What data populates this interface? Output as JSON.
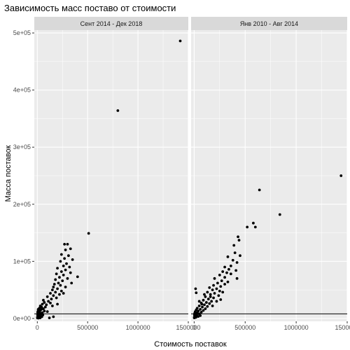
{
  "chart_data": {
    "type": "scatter",
    "title": "Зависимость масс поставо от стоимости",
    "xlabel": "Стоимость поставок",
    "ylabel": "Масса поставок",
    "xlim": [
      -30000,
      1500000
    ],
    "ylim": [
      -5000,
      505000
    ],
    "x_ticks": [
      0,
      500000,
      1000000,
      1500000
    ],
    "x_tick_labels": [
      "0",
      "500000",
      "1000000",
      "1500000"
    ],
    "y_ticks": [
      0,
      100000,
      200000,
      300000,
      400000,
      500000
    ],
    "y_tick_labels": [
      "0e+00",
      "1e+05",
      "2e+05",
      "3e+05",
      "4e+05",
      "5e+05"
    ],
    "hline": 8000,
    "grid": true,
    "background": "#EBEBEB",
    "strip_background": "#D9D9D9",
    "point_color": "#000000",
    "panels": [
      {
        "label": "Сент 2014 - Дек 2018",
        "points": [
          [
            1420000,
            486000
          ],
          [
            800000,
            364000
          ],
          [
            510000,
            149000
          ],
          [
            270000,
            130000
          ],
          [
            300000,
            130000
          ],
          [
            330000,
            122000
          ],
          [
            280000,
            120000
          ],
          [
            240000,
            112000
          ],
          [
            310000,
            110000
          ],
          [
            270000,
            105000
          ],
          [
            350000,
            103000
          ],
          [
            230000,
            100000
          ],
          [
            290000,
            96000
          ],
          [
            260000,
            92000
          ],
          [
            320000,
            90000
          ],
          [
            200000,
            88000
          ],
          [
            280000,
            85000
          ],
          [
            240000,
            82000
          ],
          [
            330000,
            80000
          ],
          [
            190000,
            78000
          ],
          [
            260000,
            76000
          ],
          [
            400000,
            73000
          ],
          [
            220000,
            72000
          ],
          [
            300000,
            70000
          ],
          [
            180000,
            68000
          ],
          [
            250000,
            66000
          ],
          [
            210000,
            62000
          ],
          [
            340000,
            62000
          ],
          [
            170000,
            60000
          ],
          [
            230000,
            58000
          ],
          [
            160000,
            55000
          ],
          [
            280000,
            55000
          ],
          [
            200000,
            52000
          ],
          [
            150000,
            50000
          ],
          [
            240000,
            48000
          ],
          [
            180000,
            46000
          ],
          [
            130000,
            44000
          ],
          [
            260000,
            44000
          ],
          [
            220000,
            42000
          ],
          [
            160000,
            40000
          ],
          [
            100000,
            38000
          ],
          [
            190000,
            36000
          ],
          [
            140000,
            34000
          ],
          [
            60000,
            32000
          ],
          [
            110000,
            30000
          ],
          [
            70000,
            28000
          ],
          [
            130000,
            27000
          ],
          [
            50000,
            25000
          ],
          [
            90000,
            24000
          ],
          [
            30000,
            22000
          ],
          [
            150000,
            22000
          ],
          [
            80000,
            20000
          ],
          [
            20000,
            18000
          ],
          [
            60000,
            17000
          ],
          [
            40000,
            16000
          ],
          [
            10000,
            15000
          ],
          [
            30000,
            14000
          ],
          [
            70000,
            13000
          ],
          [
            5000,
            12000
          ],
          [
            20000,
            11000
          ],
          [
            50000,
            10000
          ],
          [
            10000,
            9000
          ],
          [
            35000,
            8000
          ],
          [
            15000,
            7000
          ],
          [
            3000,
            6000
          ],
          [
            25000,
            5000
          ],
          [
            8000,
            4000
          ],
          [
            40000,
            3500
          ],
          [
            12000,
            3000
          ],
          [
            2000,
            2500
          ],
          [
            18000,
            2000
          ],
          [
            6000,
            1500
          ],
          [
            28000,
            1000
          ],
          [
            1000,
            800
          ],
          [
            10000,
            500
          ],
          [
            45000,
            3000
          ],
          [
            100000,
            12000
          ],
          [
            160000,
            3000
          ],
          [
            120000,
            1000
          ],
          [
            200000,
            25000
          ],
          [
            15000,
            13000
          ],
          [
            42000,
            20000
          ],
          [
            4000,
            10000
          ],
          [
            22000,
            6000
          ],
          [
            33000,
            9000
          ],
          [
            9000,
            16000
          ],
          [
            55000,
            6000
          ]
        ]
      },
      {
        "label": "Янв 2010 - Авг 2014",
        "points": [
          [
            1440000,
            250000
          ],
          [
            640000,
            225000
          ],
          [
            580000,
            167000
          ],
          [
            600000,
            160000
          ],
          [
            840000,
            182000
          ],
          [
            520000,
            160000
          ],
          [
            430000,
            143000
          ],
          [
            440000,
            137000
          ],
          [
            390000,
            128000
          ],
          [
            400000,
            115000
          ],
          [
            450000,
            110000
          ],
          [
            330000,
            108000
          ],
          [
            380000,
            102000
          ],
          [
            420000,
            98000
          ],
          [
            360000,
            92000
          ],
          [
            300000,
            90000
          ],
          [
            340000,
            86000
          ],
          [
            410000,
            84000
          ],
          [
            280000,
            82000
          ],
          [
            320000,
            80000
          ],
          [
            360000,
            78000
          ],
          [
            250000,
            76000
          ],
          [
            300000,
            72000
          ],
          [
            200000,
            70000
          ],
          [
            420000,
            70000
          ],
          [
            270000,
            66000
          ],
          [
            330000,
            64000
          ],
          [
            230000,
            62000
          ],
          [
            300000,
            60000
          ],
          [
            190000,
            58000
          ],
          [
            260000,
            56000
          ],
          [
            150000,
            54000
          ],
          [
            220000,
            52000
          ],
          [
            180000,
            50000
          ],
          [
            250000,
            48000
          ],
          [
            130000,
            46000
          ],
          [
            280000,
            46000
          ],
          [
            200000,
            44000
          ],
          [
            160000,
            42000
          ],
          [
            240000,
            40000
          ],
          [
            110000,
            38000
          ],
          [
            190000,
            36000
          ],
          [
            140000,
            34000
          ],
          [
            260000,
            33000
          ],
          [
            90000,
            32000
          ],
          [
            170000,
            30000
          ],
          [
            120000,
            28000
          ],
          [
            70000,
            27000
          ],
          [
            150000,
            26000
          ],
          [
            100000,
            24000
          ],
          [
            50000,
            22000
          ],
          [
            130000,
            21000
          ],
          [
            80000,
            20000
          ],
          [
            30000,
            18000
          ],
          [
            110000,
            17000
          ],
          [
            60000,
            16000
          ],
          [
            20000,
            15000
          ],
          [
            90000,
            14000
          ],
          [
            40000,
            13000
          ],
          [
            10000,
            12000
          ],
          [
            70000,
            11000
          ],
          [
            30000,
            10000
          ],
          [
            5000,
            9000
          ],
          [
            50000,
            8000
          ],
          [
            15000,
            7000
          ],
          [
            3000,
            6000
          ],
          [
            25000,
            5000
          ],
          [
            8000,
            4000
          ],
          [
            40000,
            3500
          ],
          [
            12000,
            3000
          ],
          [
            2000,
            2500
          ],
          [
            18000,
            2000
          ],
          [
            6000,
            1500
          ],
          [
            1000,
            1000
          ],
          [
            20000,
            45000
          ],
          [
            50000,
            30000
          ],
          [
            100000,
            42000
          ],
          [
            180000,
            22000
          ],
          [
            220000,
            30000
          ],
          [
            35000,
            8500
          ],
          [
            60000,
            5000
          ],
          [
            14000,
            52000
          ],
          [
            75000,
            25000
          ],
          [
            160000,
            38000
          ]
        ]
      }
    ]
  }
}
